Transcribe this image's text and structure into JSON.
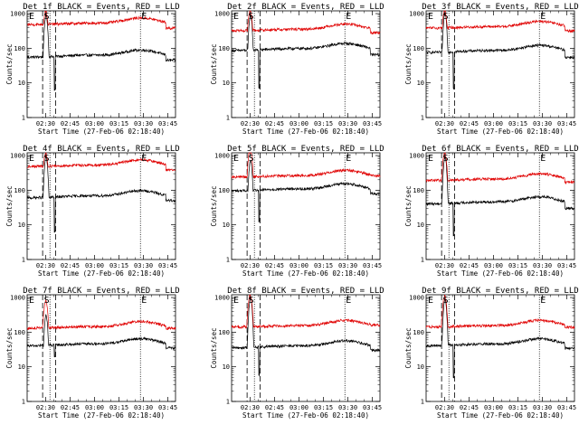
{
  "colors": {
    "events": "#000000",
    "lld": "#e00000",
    "axes": "#000000",
    "background": "#ffffff"
  },
  "panels": [
    {
      "title": "Det 1f BLACK = Events, RED = LLD"
    },
    {
      "title": "Det 2f BLACK = Events, RED = LLD"
    },
    {
      "title": "Det 3f BLACK = Events, RED = LLD"
    },
    {
      "title": "Det 4f BLACK = Events, RED = LLD"
    },
    {
      "title": "Det 5f BLACK = Events, RED = LLD"
    },
    {
      "title": "Det 6f BLACK = Events, RED = LLD"
    },
    {
      "title": "Det 7f BLACK = Events, RED = LLD"
    },
    {
      "title": "Det 8f BLACK = Events, RED = LLD"
    },
    {
      "title": "Det 9f BLACK = Events, RED = LLD"
    }
  ],
  "axis": {
    "ylabel": "Counts/sec",
    "xlabel": "Start Time (27-Feb-06 02:18:40)",
    "xticks": [
      "02:30",
      "02:45",
      "03:00",
      "03:15",
      "03:30",
      "03:45"
    ],
    "yticks": [
      "1",
      "10",
      "100",
      "1000"
    ]
  },
  "markers": {
    "start": "E",
    "peak": "S",
    "end": "E"
  },
  "chart_data": {
    "type": "line",
    "scale_y": "log",
    "ylim": [
      1,
      1200
    ],
    "xlim_minutes_after_start": [
      0,
      91
    ],
    "xunits": "minutes after 02:18:40",
    "xticks_minutes": [
      11.33,
      26.33,
      41.33,
      56.33,
      71.33,
      86.33
    ],
    "series_names": [
      "Events",
      "LLD"
    ],
    "vertical_lines_minutes": {
      "dashed": [
        9.5,
        17.5
      ],
      "dotted": [
        14.0,
        69.5
      ]
    },
    "panels": [
      {
        "events": {
          "base": 55,
          "peak": 900,
          "dip": 6,
          "end": 45
        },
        "lld": {
          "base": 480,
          "peak": 1200,
          "end": 380
        }
      },
      {
        "events": {
          "base": 85,
          "peak": 900,
          "dip": 7,
          "end": 65
        },
        "lld": {
          "base": 320,
          "peak": 1250,
          "end": 280
        }
      },
      {
        "events": {
          "base": 75,
          "peak": 1000,
          "dip": 7,
          "end": 55
        },
        "lld": {
          "base": 380,
          "peak": 1250,
          "end": 320
        }
      },
      {
        "events": {
          "base": 60,
          "peak": 900,
          "dip": 6,
          "end": 50
        },
        "lld": {
          "base": 480,
          "peak": 1200,
          "end": 380
        }
      },
      {
        "events": {
          "base": 95,
          "peak": 700,
          "dip": 12,
          "end": 80
        },
        "lld": {
          "base": 240,
          "peak": 1600,
          "end": 260
        }
      },
      {
        "events": {
          "base": 40,
          "peak": 900,
          "dip": 5,
          "end": 30
        },
        "lld": {
          "base": 190,
          "peak": 1200,
          "end": 170
        }
      },
      {
        "events": {
          "base": 40,
          "peak": 300,
          "dip": 20,
          "end": 35
        },
        "lld": {
          "base": 130,
          "peak": 800,
          "end": 130
        }
      },
      {
        "events": {
          "base": 35,
          "peak": 1000,
          "dip": 6,
          "end": 30
        },
        "lld": {
          "base": 140,
          "peak": 1200,
          "end": 160
        }
      },
      {
        "events": {
          "base": 40,
          "peak": 900,
          "dip": 5,
          "end": 35
        },
        "lld": {
          "base": 140,
          "peak": 1100,
          "end": 140
        }
      }
    ]
  }
}
